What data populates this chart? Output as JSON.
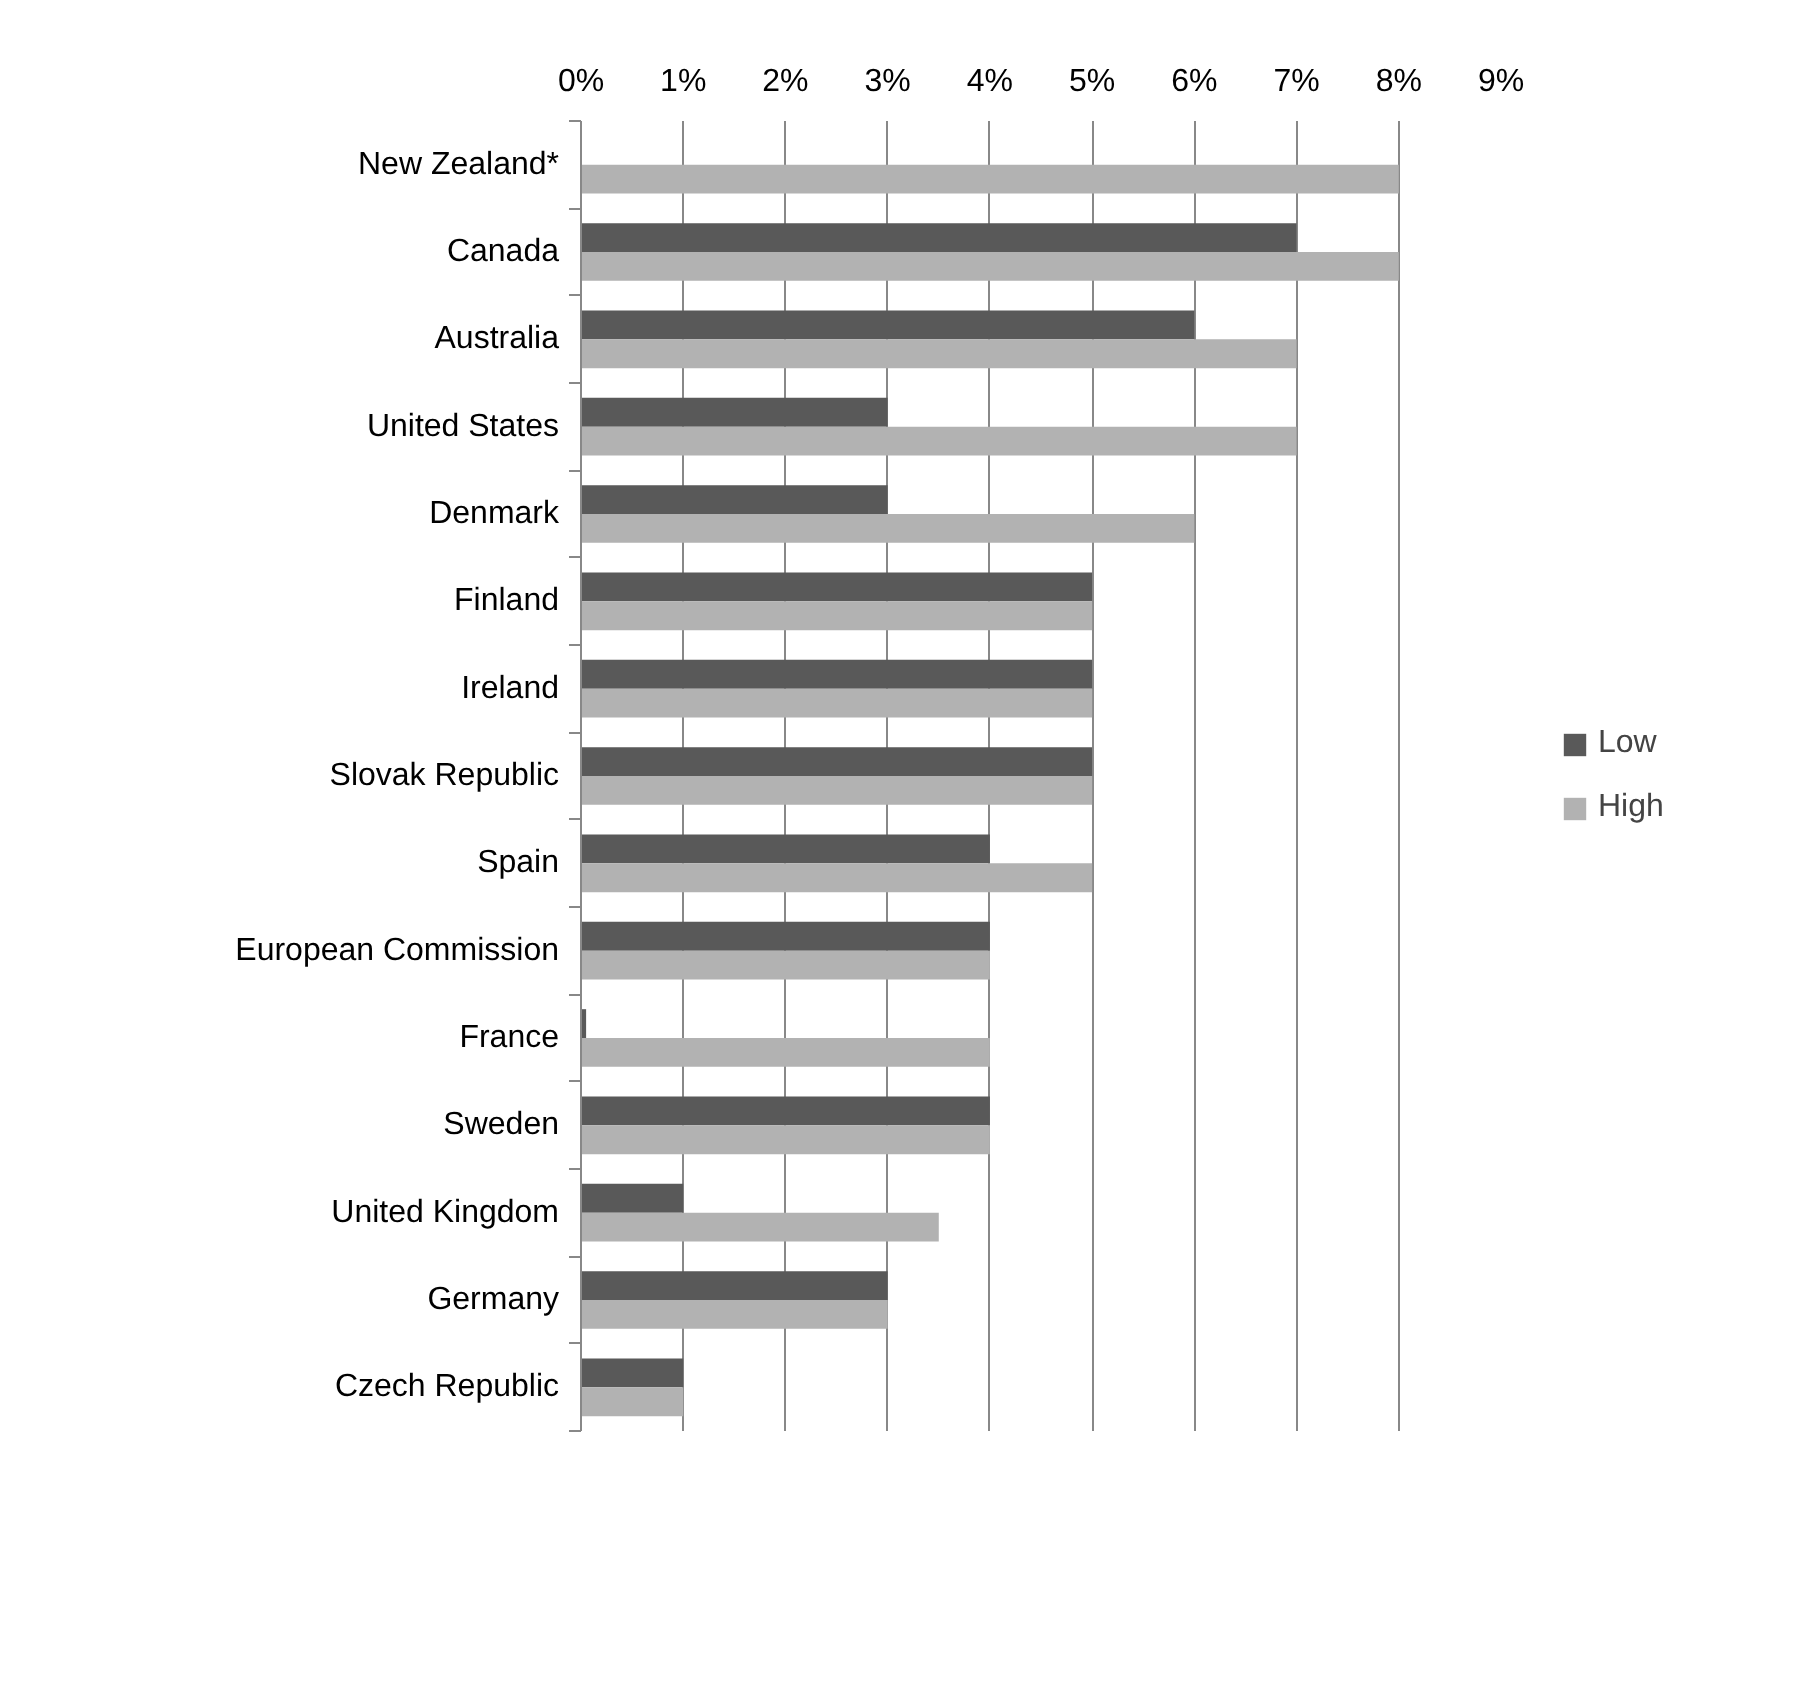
{
  "chart_data": {
    "type": "bar",
    "orientation": "horizontal",
    "categories": [
      "New Zealand*",
      "Canada",
      "Australia",
      "United States",
      "Denmark",
      "Finland",
      "Ireland",
      "Slovak Republic",
      "Spain",
      "European Commission",
      "France",
      "Sweden",
      "United Kingdom",
      "Germany",
      "Czech Republic"
    ],
    "series": [
      {
        "name": "Low",
        "color": "#595959",
        "values": [
          null,
          7,
          6,
          3,
          3,
          5,
          5,
          5,
          4,
          4,
          0.05,
          4,
          1,
          3,
          1
        ]
      },
      {
        "name": "High",
        "color": "#b2b2b2",
        "values": [
          8,
          8,
          7,
          7,
          6,
          5,
          5,
          5,
          5,
          4,
          4,
          4,
          3.5,
          3,
          1
        ]
      }
    ],
    "xlim": [
      0,
      9
    ],
    "xticks": [
      {
        "value": 0,
        "label": "0%"
      },
      {
        "value": 1,
        "label": "1%"
      },
      {
        "value": 2,
        "label": "2%"
      },
      {
        "value": 3,
        "label": "3%"
      },
      {
        "value": 4,
        "label": "4%"
      },
      {
        "value": 5,
        "label": "5%"
      },
      {
        "value": 6,
        "label": "6%"
      },
      {
        "value": 7,
        "label": "7%"
      },
      {
        "value": 8,
        "label": "8%"
      },
      {
        "value": 9,
        "label": "9%"
      }
    ],
    "grid": "x",
    "legend": "right"
  }
}
